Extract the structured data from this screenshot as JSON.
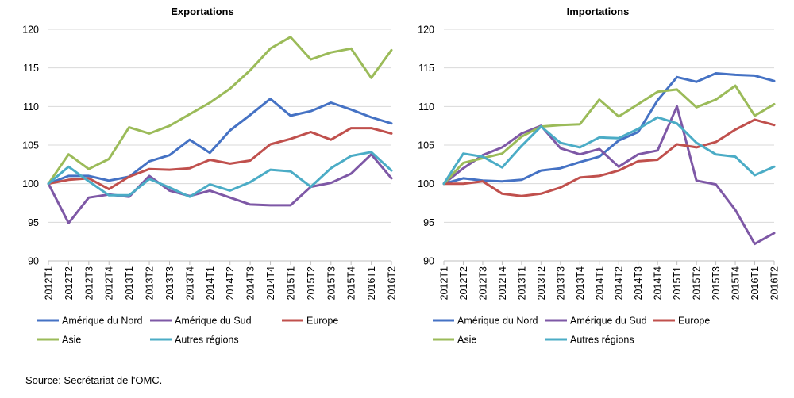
{
  "source": "Source: Secrétariat de l'OMC.",
  "colors": {
    "Amérique du Nord": "#4572C4",
    "Amérique du Sud": "#7E58A6",
    "Europe": "#C0504D",
    "Asie": "#9BBB59",
    "Autres régions": "#4BACC6"
  },
  "chart_data": [
    {
      "type": "line",
      "title": "Exportations",
      "ylim": [
        90,
        120
      ],
      "yticks": [
        90,
        95,
        100,
        105,
        110,
        115,
        120
      ],
      "grid": true,
      "legend": "bottom",
      "categories": [
        "2012T1",
        "2012T2",
        "2012T3",
        "2012T4",
        "2013T1",
        "2013T2",
        "2013T3",
        "2013T4",
        "2014T1",
        "2014T2",
        "2014T3",
        "2014T4",
        "2015T1",
        "2015T2",
        "2015T3",
        "2015T4",
        "2016T1",
        "2016T2"
      ],
      "series": [
        {
          "name": "Amérique du Nord",
          "values": [
            100,
            101,
            101,
            100.4,
            100.9,
            102.9,
            103.7,
            105.7,
            104.0,
            106.9,
            108.9,
            111.0,
            108.8,
            109.4,
            110.5,
            109.6,
            108.6,
            107.8
          ]
        },
        {
          "name": "Amérique du Sud",
          "values": [
            100,
            94.9,
            98.2,
            98.6,
            98.3,
            101.0,
            99.1,
            98.4,
            99.1,
            98.2,
            97.3,
            97.2,
            97.2,
            99.6,
            100.1,
            101.3,
            103.8,
            100.7
          ]
        },
        {
          "name": "Europe",
          "values": [
            100,
            100.5,
            100.7,
            99.3,
            100.9,
            101.9,
            101.8,
            102.0,
            103.1,
            102.6,
            103.0,
            105.1,
            105.8,
            106.7,
            105.7,
            107.2,
            107.2,
            106.5
          ]
        },
        {
          "name": "Asie",
          "values": [
            100,
            103.8,
            101.9,
            103.2,
            107.3,
            106.5,
            107.5,
            109.0,
            110.5,
            112.3,
            114.7,
            117.5,
            119.0,
            116.1,
            117.0,
            117.5,
            113.7,
            117.3
          ]
        },
        {
          "name": "Autres régions",
          "values": [
            100,
            102.2,
            100.3,
            98.5,
            98.5,
            100.6,
            99.5,
            98.3,
            99.9,
            99.1,
            100.2,
            101.8,
            101.6,
            99.6,
            102.0,
            103.6,
            104.1,
            101.7
          ]
        }
      ]
    },
    {
      "type": "line",
      "title": "Importations",
      "ylim": [
        90,
        120
      ],
      "yticks": [
        90,
        95,
        100,
        105,
        110,
        115,
        120
      ],
      "grid": true,
      "legend": "bottom",
      "categories": [
        "2012T1",
        "2012T2",
        "2012T3",
        "2012T4",
        "2013T1",
        "2013T2",
        "2013T3",
        "2013T4",
        "2014T1",
        "2014T2",
        "2014T3",
        "2014T4",
        "2015T1",
        "2015T2",
        "2015T3",
        "2015T4",
        "2016T1",
        "2016T2"
      ],
      "series": [
        {
          "name": "Amérique du Nord",
          "values": [
            100,
            100.7,
            100.4,
            100.3,
            100.5,
            101.7,
            102.0,
            102.8,
            103.5,
            105.6,
            106.7,
            110.8,
            113.8,
            113.2,
            114.3,
            114.1,
            114.0,
            113.3
          ]
        },
        {
          "name": "Amérique du Sud",
          "values": [
            100,
            102.0,
            103.7,
            104.7,
            106.5,
            107.5,
            104.6,
            103.8,
            104.5,
            102.2,
            103.8,
            104.3,
            110.0,
            100.4,
            99.9,
            96.6,
            92.2,
            93.6
          ]
        },
        {
          "name": "Europe",
          "values": [
            100,
            100.0,
            100.3,
            98.7,
            98.4,
            98.7,
            99.5,
            100.8,
            101.0,
            101.7,
            102.9,
            103.1,
            105.1,
            104.7,
            105.4,
            107.0,
            108.3,
            107.6
          ]
        },
        {
          "name": "Asie",
          "values": [
            100,
            102.7,
            103.3,
            103.9,
            106.1,
            107.4,
            107.6,
            107.7,
            110.9,
            108.7,
            110.3,
            111.9,
            112.2,
            109.9,
            110.9,
            112.7,
            108.8,
            110.3
          ]
        },
        {
          "name": "Autres régions",
          "values": [
            100,
            103.9,
            103.5,
            102.1,
            104.9,
            107.4,
            105.3,
            104.7,
            106.0,
            105.9,
            107.1,
            108.6,
            107.8,
            105.3,
            103.8,
            103.5,
            101.1,
            102.2
          ]
        }
      ]
    }
  ]
}
